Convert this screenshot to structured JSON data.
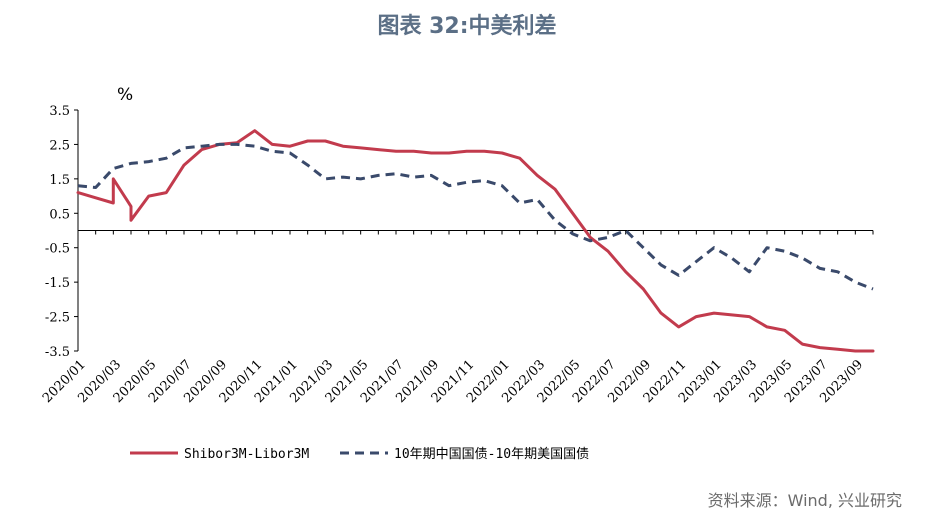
{
  "title": "图表 32:中美利差",
  "source": "资料来源：Wind, 兴业研究",
  "colors": {
    "title": "#5b6f86",
    "series1": "#c23b4d",
    "series2": "#3a4a6b"
  },
  "chart_data": {
    "type": "line",
    "ylabel": "%",
    "ylim": [
      -3.5,
      3.5
    ],
    "y_ticks": [
      "3.5",
      "2.5",
      "1.5",
      "0.5",
      "-0.5",
      "-1.5",
      "-2.5",
      "-3.5"
    ],
    "x_tick_labels": [
      "2020/01",
      "2020/03",
      "2020/05",
      "2020/07",
      "2020/09",
      "2020/11",
      "2021/01",
      "2021/03",
      "2021/05",
      "2021/07",
      "2021/09",
      "2021/11",
      "2022/01",
      "2022/03",
      "2022/05",
      "2022/07",
      "2022/09",
      "2022/11",
      "2023/01",
      "2023/03",
      "2023/05",
      "2023/07",
      "2023/09"
    ],
    "grid": false,
    "legend_position": "bottom",
    "series": [
      {
        "name": "Shibor3M-Libor3M",
        "style": "solid",
        "x": [
          "2020/01",
          "2020/02",
          "2020/03",
          "2020/03",
          "2020/04",
          "2020/04",
          "2020/05",
          "2020/06",
          "2020/07",
          "2020/08",
          "2020/09",
          "2020/10",
          "2020/11",
          "2020/12",
          "2021/01",
          "2021/02",
          "2021/03",
          "2021/04",
          "2021/05",
          "2021/06",
          "2021/07",
          "2021/08",
          "2021/09",
          "2021/10",
          "2021/11",
          "2021/12",
          "2022/01",
          "2022/02",
          "2022/03",
          "2022/04",
          "2022/05",
          "2022/06",
          "2022/07",
          "2022/08",
          "2022/09",
          "2022/10",
          "2022/11",
          "2022/12",
          "2023/01",
          "2023/02",
          "2023/03",
          "2023/04",
          "2023/05",
          "2023/06",
          "2023/07",
          "2023/08",
          "2023/09",
          "2023/10"
        ],
        "values": [
          1.1,
          0.95,
          0.8,
          1.5,
          0.7,
          0.3,
          1.0,
          1.1,
          1.9,
          2.35,
          2.5,
          2.55,
          2.9,
          2.5,
          2.45,
          2.6,
          2.6,
          2.45,
          2.4,
          2.35,
          2.3,
          2.3,
          2.25,
          2.25,
          2.3,
          2.3,
          2.25,
          2.1,
          1.6,
          1.2,
          0.5,
          -0.2,
          -0.6,
          -1.2,
          -1.7,
          -2.4,
          -2.8,
          -2.5,
          -2.4,
          -2.45,
          -2.5,
          -2.8,
          -2.9,
          -3.3,
          -3.4,
          -3.45,
          -3.5,
          -3.5
        ]
      },
      {
        "name": "10年期中国国债-10年期美国国债",
        "style": "dashed",
        "x": [
          "2020/01",
          "2020/02",
          "2020/03",
          "2020/04",
          "2020/05",
          "2020/06",
          "2020/07",
          "2020/08",
          "2020/09",
          "2020/10",
          "2020/11",
          "2020/12",
          "2021/01",
          "2021/02",
          "2021/03",
          "2021/04",
          "2021/05",
          "2021/06",
          "2021/07",
          "2021/08",
          "2021/09",
          "2021/10",
          "2021/11",
          "2021/12",
          "2022/01",
          "2022/02",
          "2022/03",
          "2022/04",
          "2022/05",
          "2022/06",
          "2022/07",
          "2022/08",
          "2022/09",
          "2022/10",
          "2022/11",
          "2022/12",
          "2023/01",
          "2023/02",
          "2023/03",
          "2023/04",
          "2023/05",
          "2023/06",
          "2023/07",
          "2023/08",
          "2023/09",
          "2023/10"
        ],
        "values": [
          1.3,
          1.25,
          1.8,
          1.95,
          2.0,
          2.1,
          2.4,
          2.45,
          2.5,
          2.5,
          2.45,
          2.3,
          2.25,
          1.9,
          1.5,
          1.55,
          1.5,
          1.6,
          1.65,
          1.55,
          1.6,
          1.3,
          1.4,
          1.45,
          1.3,
          0.8,
          0.9,
          0.3,
          -0.1,
          -0.3,
          -0.2,
          0.0,
          -0.5,
          -1.0,
          -1.3,
          -0.9,
          -0.5,
          -0.8,
          -1.2,
          -0.5,
          -0.6,
          -0.8,
          -1.1,
          -1.2,
          -1.5,
          -1.7
        ]
      }
    ]
  }
}
